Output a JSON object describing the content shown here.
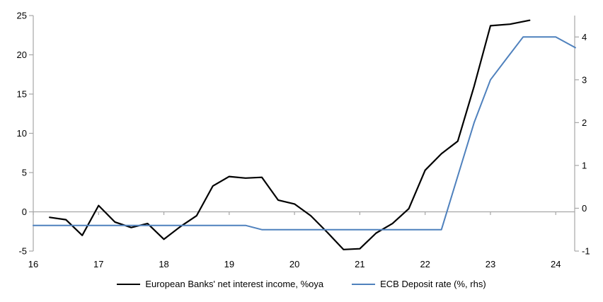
{
  "chart_data": {
    "type": "line",
    "title": "",
    "legend_position": "bottom-center",
    "grid": "zero-line-only",
    "colors": {
      "axis": "#A6A6A6",
      "background": "#FFFFFF",
      "text": "#000000",
      "series_nii": "#000000",
      "series_ecb": "#4F81BD"
    },
    "x_axis": {
      "ticks": [
        16,
        17,
        18,
        19,
        20,
        21,
        22,
        23,
        24
      ],
      "range": [
        16,
        24.29
      ]
    },
    "y_axis_left": {
      "ticks": [
        25,
        20,
        15,
        10,
        5,
        0,
        -5
      ],
      "range": [
        -5,
        25
      ]
    },
    "y_axis_right": {
      "ticks": [
        4,
        3,
        2,
        1,
        0,
        -1
      ],
      "range": [
        -1,
        4.5
      ]
    },
    "series": [
      {
        "name": "European Banks' net interest income, %oya",
        "axis": "left",
        "color": "#000000",
        "x": [
          16.25,
          16.5,
          16.75,
          17.0,
          17.25,
          17.5,
          17.75,
          18.0,
          18.25,
          18.5,
          18.75,
          19.0,
          19.25,
          19.5,
          19.75,
          20.0,
          20.25,
          20.5,
          20.75,
          21.0,
          21.25,
          21.5,
          21.75,
          22.0,
          22.25,
          22.5,
          22.75,
          23.0,
          23.3,
          23.6
        ],
        "values": [
          -0.7,
          -1.0,
          -3.0,
          0.8,
          -1.3,
          -2.0,
          -1.5,
          -3.5,
          -1.9,
          -0.5,
          3.3,
          4.5,
          4.3,
          4.4,
          1.5,
          1.0,
          -0.5,
          -2.6,
          -4.8,
          -4.7,
          -2.7,
          -1.5,
          0.4,
          5.3,
          7.4,
          9.0,
          16.0,
          23.7,
          23.9,
          24.4
        ]
      },
      {
        "name": "ECB Deposit rate (%, rhs)",
        "axis": "right",
        "color": "#4F81BD",
        "x": [
          16.0,
          16.25,
          16.5,
          16.75,
          17.0,
          17.25,
          17.5,
          17.75,
          18.0,
          18.25,
          18.5,
          18.75,
          19.0,
          19.25,
          19.5,
          19.75,
          20.0,
          20.25,
          20.5,
          20.75,
          21.0,
          21.25,
          21.5,
          21.75,
          22.0,
          22.25,
          22.5,
          22.75,
          23.0,
          23.25,
          23.5,
          23.75,
          24.0,
          24.3
        ],
        "values": [
          -0.4,
          -0.4,
          -0.4,
          -0.4,
          -0.4,
          -0.4,
          -0.4,
          -0.4,
          -0.4,
          -0.4,
          -0.4,
          -0.4,
          -0.4,
          -0.4,
          -0.5,
          -0.5,
          -0.5,
          -0.5,
          -0.5,
          -0.5,
          -0.5,
          -0.5,
          -0.5,
          -0.5,
          -0.5,
          -0.5,
          0.75,
          2.0,
          3.0,
          3.5,
          4.0,
          4.0,
          4.0,
          3.75
        ]
      }
    ]
  }
}
